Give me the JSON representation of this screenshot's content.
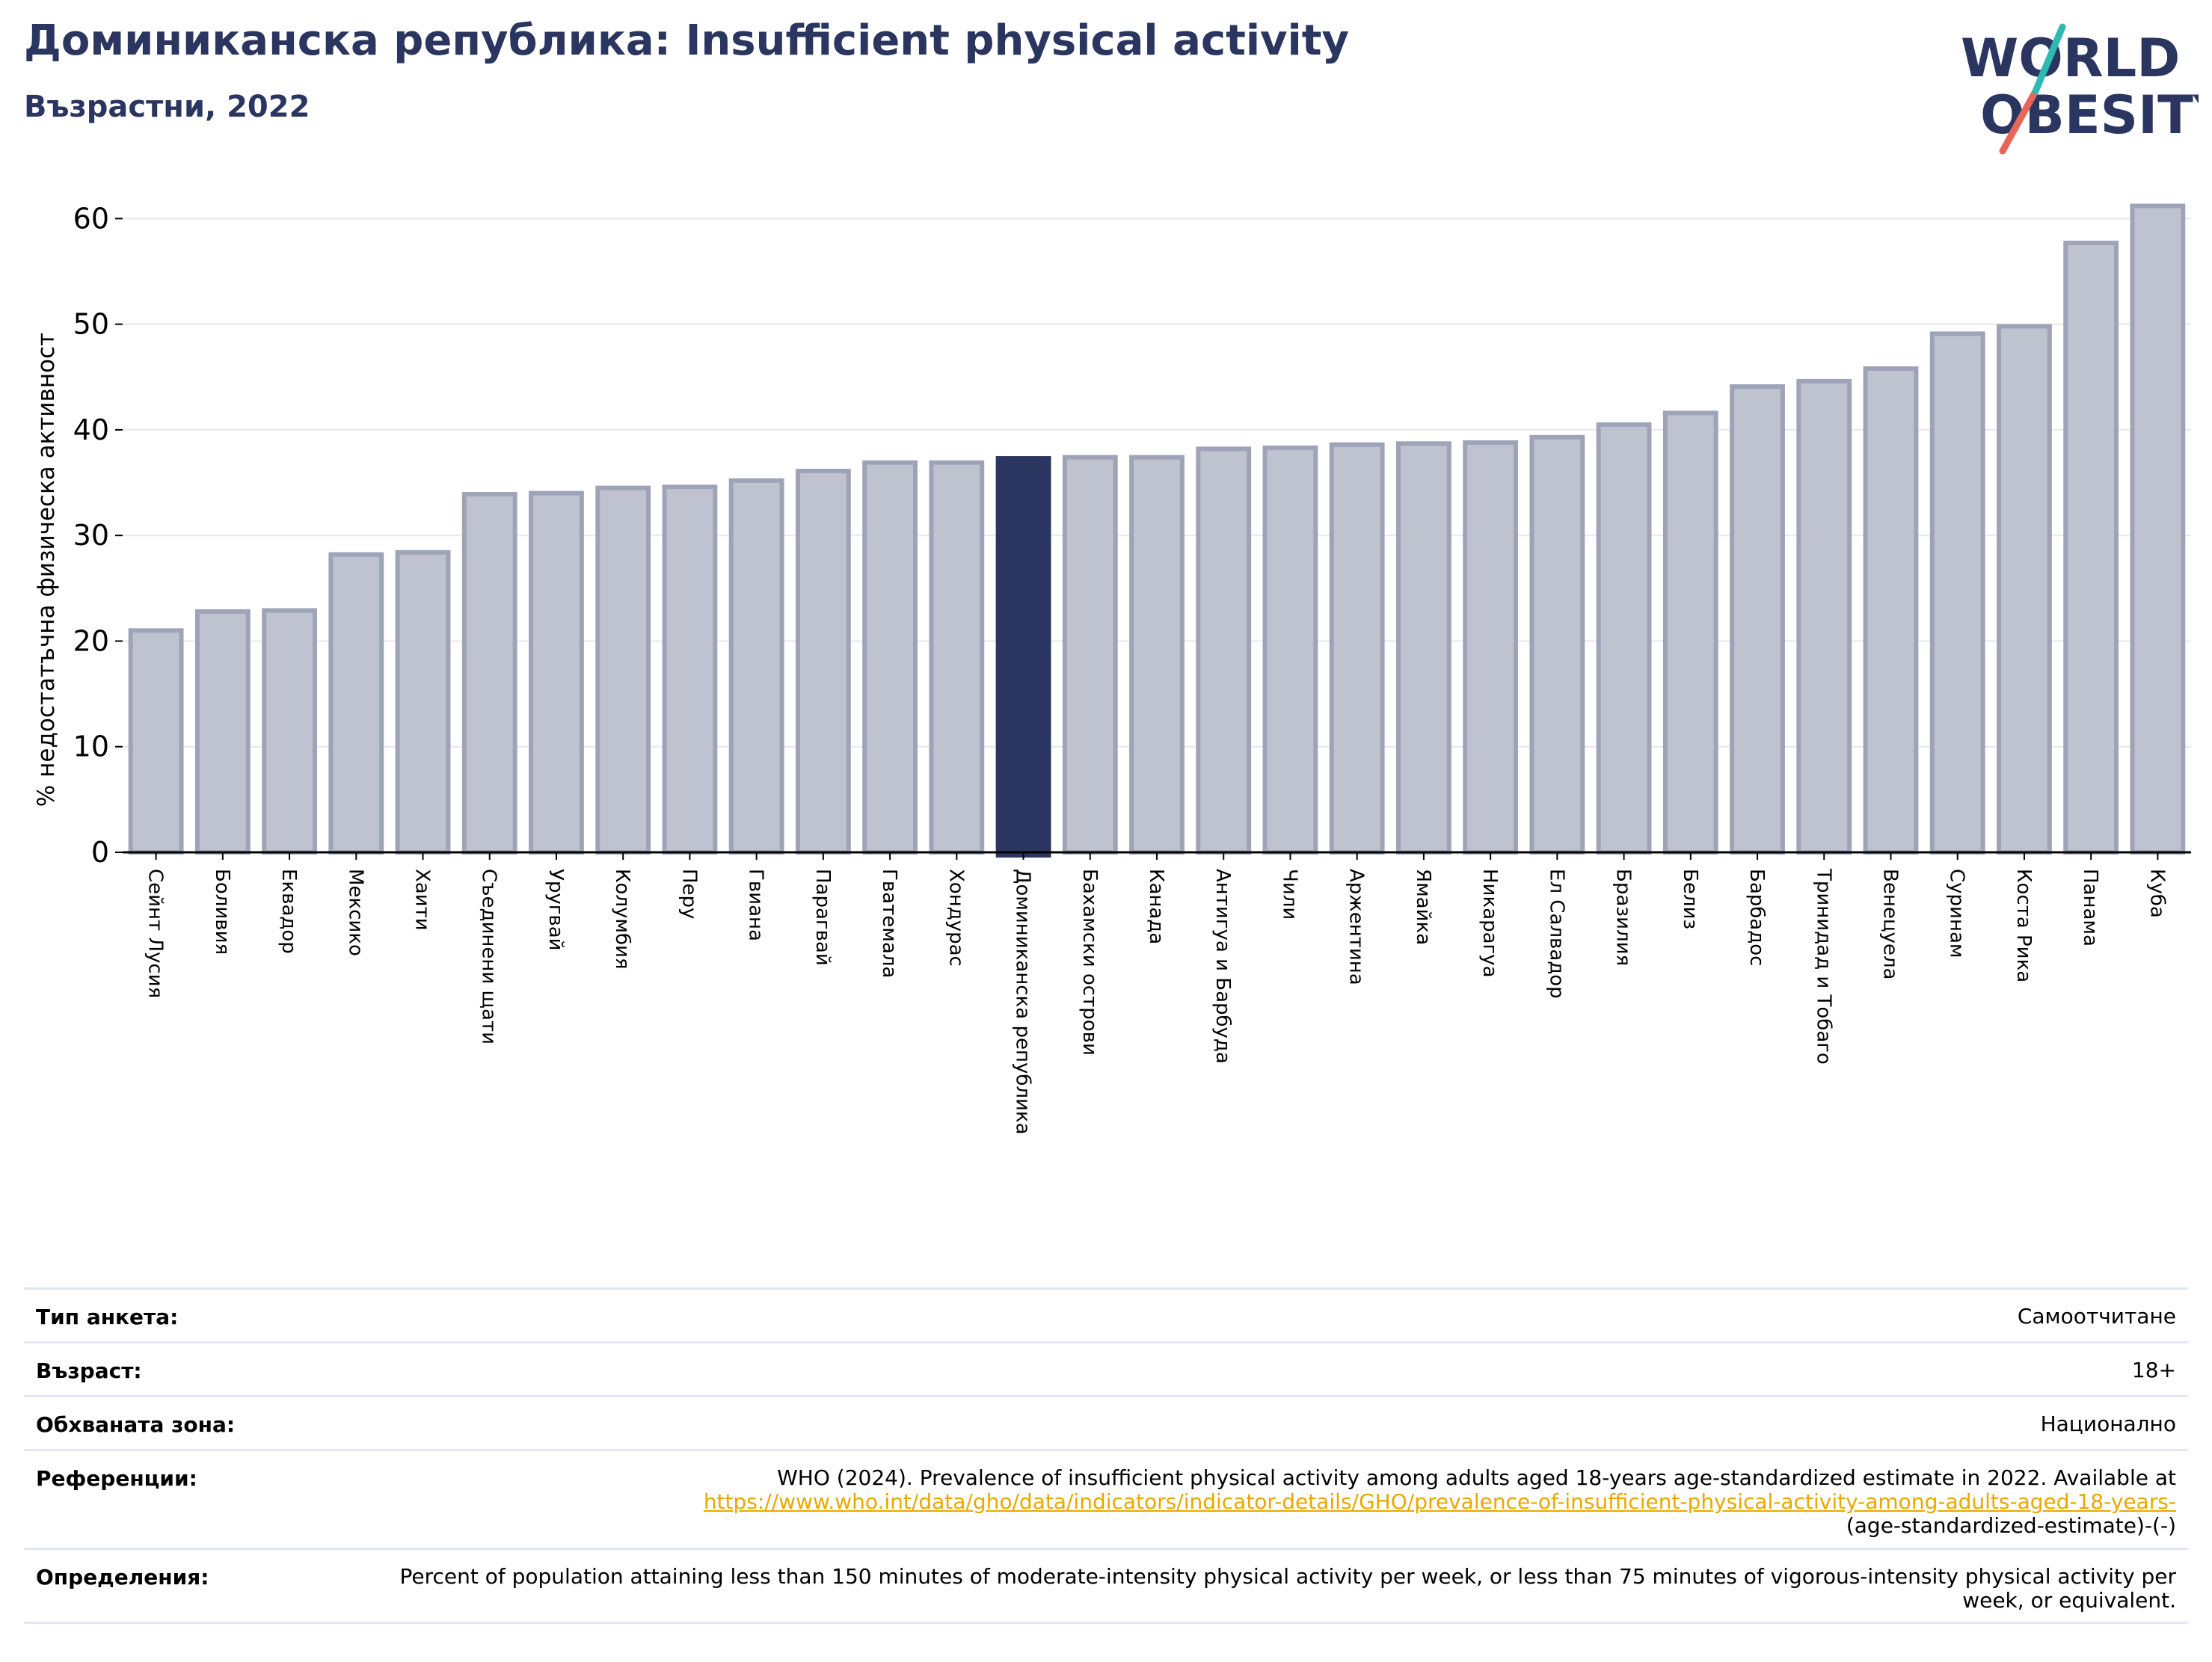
{
  "header": {
    "title": "Доминиканска република: Insufficient physical activity",
    "subtitle": "Възрастни, 2022"
  },
  "logo": {
    "line1": "WORLD",
    "line2": "OBESITY"
  },
  "colors": {
    "highlight": "#2a3560",
    "bar": "#bfc2cf",
    "bar_border": "#9ea3b8",
    "title": "#2a3560",
    "link": "#e8a800"
  },
  "chart_data": {
    "type": "bar",
    "ylabel": "% недостатъчна физическа активност",
    "ylim": [
      0,
      63
    ],
    "yticks": [
      0,
      10,
      20,
      30,
      40,
      50,
      60
    ],
    "grid": true,
    "highlight": "Доминиканска република",
    "categories": [
      "Сейнт Лусия",
      "Боливия",
      "Еквадор",
      "Мексико",
      "Хаити",
      "Съединени щати",
      "Уругвай",
      "Колумбия",
      "Перу",
      "Гвиана",
      "Парагвай",
      "Гватемала",
      "Хондурас",
      "Доминиканска република",
      "Бахамски острови",
      "Канада",
      "Антигуа и Барбуда",
      "Чили",
      "Аржентина",
      "Ямайка",
      "Никарагуа",
      "Ел Салвадор",
      "Бразилия",
      "Белиз",
      "Барбадос",
      "Тринидад и Тобаго",
      "Венецуела",
      "Суринам",
      "Коста Рика",
      "Панама",
      "Куба"
    ],
    "values": [
      21.0,
      22.8,
      22.9,
      28.2,
      28.4,
      33.9,
      34.0,
      34.5,
      34.6,
      35.2,
      36.1,
      36.9,
      36.9,
      37.3,
      37.4,
      37.4,
      38.2,
      38.3,
      38.6,
      38.7,
      38.8,
      39.3,
      40.5,
      41.6,
      44.1,
      44.6,
      45.8,
      49.1,
      49.8,
      57.7,
      61.2
    ]
  },
  "meta": {
    "survey_label": "Тип анкета:",
    "survey_value": "Самоотчитане",
    "age_label": "Възраст:",
    "age_value": "18+",
    "area_label": "Обхваната зона:",
    "area_value": "Национално",
    "refs_label": "Референции:",
    "refs_text": "WHO (2024). Prevalence of insufficient physical activity among adults aged 18-years age-standardized estimate in 2022. Available at",
    "refs_link": "https://www.who.int/data/gho/data/indicators/indicator-details/GHO/prevalence-of-insufficient-physical-activity-among-adults-aged-18-years-",
    "refs_tail": "(age-standardized-estimate)-(-)",
    "defs_label": "Определения:",
    "defs_text": "Percent of population attaining less than 150 minutes of moderate-intensity physical activity per week, or less than 75 minutes of vigorous-intensity physical activity per week, or equivalent."
  }
}
